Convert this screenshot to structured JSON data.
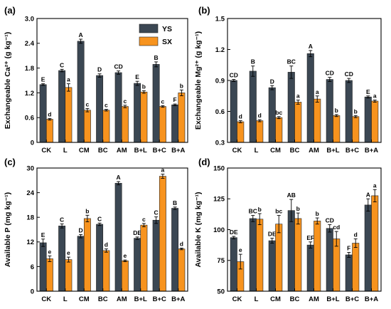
{
  "colors": {
    "YS": "#3b4753",
    "SX": "#f7931e"
  },
  "legend": [
    "YS",
    "SX"
  ],
  "chart_data": [
    {
      "type": "bar",
      "panel_label": "(a)",
      "ylabel": "Exchangeable Ca²⁺ (g kg⁻¹)",
      "ylim": [
        0,
        3.0
      ],
      "yticks": [
        "0",
        "0.6",
        "1.2",
        "1.8",
        "2.4",
        "3.0"
      ],
      "ytick_values": [
        0,
        0.6,
        1.2,
        1.8,
        2.4,
        3.0
      ],
      "categories": [
        "CK",
        "L",
        "CM",
        "BC",
        "AM",
        "B+L",
        "B+C",
        "B+A"
      ],
      "series": [
        {
          "name": "YS",
          "values": [
            1.4,
            1.74,
            2.45,
            1.62,
            1.69,
            1.43,
            1.89,
            0.91
          ],
          "errors": [
            0.02,
            0.03,
            0.05,
            0.04,
            0.04,
            0.05,
            0.06,
            0.02
          ],
          "letters": [
            "E",
            "C",
            "A",
            "D",
            "CD",
            "E",
            "B",
            "F"
          ]
        },
        {
          "name": "SX",
          "values": [
            0.56,
            1.33,
            0.78,
            0.78,
            0.87,
            1.22,
            0.87,
            1.2
          ],
          "errors": [
            0.02,
            0.09,
            0.04,
            0.02,
            0.03,
            0.03,
            0.02,
            0.07
          ],
          "letters": [
            "d",
            "a",
            "c",
            "c",
            "c",
            "b",
            "c",
            "b"
          ]
        }
      ],
      "legend_position": "top-right"
    },
    {
      "type": "bar",
      "panel_label": "(b)",
      "ylabel": "Exchangeable Mg²⁺ (g kg⁻¹)",
      "ylim": [
        0.3,
        1.5
      ],
      "yticks": [
        "0.3",
        "0.6",
        "0.9",
        "1.2",
        "1.5"
      ],
      "ytick_values": [
        0.3,
        0.6,
        0.9,
        1.2,
        1.5
      ],
      "categories": [
        "CK",
        "L",
        "CM",
        "BC",
        "AM",
        "B+L",
        "B+C",
        "B+A"
      ],
      "series": [
        {
          "name": "YS",
          "values": [
            0.9,
            0.99,
            0.83,
            0.98,
            1.16,
            0.91,
            0.9,
            0.74
          ],
          "errors": [
            0.01,
            0.05,
            0.02,
            0.06,
            0.03,
            0.02,
            0.02,
            0.01
          ],
          "letters": [
            "CD",
            "B",
            "D",
            "BC",
            "A",
            "CD",
            "CD",
            "E"
          ]
        },
        {
          "name": "SX",
          "values": [
            0.5,
            0.51,
            0.54,
            0.69,
            0.72,
            0.56,
            0.55,
            0.7
          ],
          "errors": [
            0.01,
            0.01,
            0.01,
            0.02,
            0.03,
            0.01,
            0.01,
            0.01
          ],
          "letters": [
            "d",
            "d",
            "bc",
            "a",
            "a",
            "b",
            "b",
            "a"
          ]
        }
      ]
    },
    {
      "type": "bar",
      "panel_label": "(c)",
      "ylabel": "Available P (mg kg⁻¹)",
      "ylim": [
        0,
        30
      ],
      "yticks": [
        "0",
        "6",
        "12",
        "18",
        "24",
        "30"
      ],
      "ytick_values": [
        0,
        6,
        12,
        18,
        24,
        30
      ],
      "categories": [
        "CK",
        "L",
        "CM",
        "BC",
        "AM",
        "B+L",
        "B+C",
        "B+A"
      ],
      "series": [
        {
          "name": "YS",
          "values": [
            11.8,
            15.9,
            13.4,
            16.3,
            26.3,
            12.9,
            17.3,
            20.2
          ],
          "errors": [
            0.9,
            0.5,
            0.4,
            0.3,
            0.4,
            0.3,
            0.8,
            0.3
          ],
          "letters": [
            "E",
            "C",
            "D",
            "C",
            "A",
            "DE",
            "C",
            "B"
          ]
        },
        {
          "name": "SX",
          "values": [
            7.9,
            7.7,
            17.7,
            9.9,
            7.4,
            16.1,
            28.0,
            10.3
          ],
          "errors": [
            0.7,
            0.6,
            0.8,
            0.4,
            0.2,
            0.4,
            0.5,
            0.2
          ],
          "letters": [
            "e",
            "e",
            "b",
            "d",
            "e",
            "c",
            "a",
            "d"
          ]
        }
      ]
    },
    {
      "type": "bar",
      "panel_label": "(d)",
      "ylabel": "Available K (mg kg⁻¹)",
      "ylim": [
        50,
        150
      ],
      "yticks": [
        "50",
        "75",
        "100",
        "125",
        "150"
      ],
      "ytick_values": [
        50,
        75,
        100,
        125,
        150
      ],
      "categories": [
        "CK",
        "L",
        "CM",
        "BC",
        "AM",
        "B+L",
        "B+C",
        "B+A"
      ],
      "series": [
        {
          "name": "YS",
          "values": [
            93.5,
            109.0,
            91.0,
            115.5,
            87.5,
            101.0,
            79.5,
            120.0
          ],
          "errors": [
            1.0,
            2.5,
            2.0,
            9.0,
            2.5,
            3.0,
            2.0,
            5.0
          ],
          "letters": [
            "DE",
            "BC",
            "DE",
            "AB",
            "EF",
            "CD",
            "F",
            "A"
          ]
        },
        {
          "name": "SX",
          "values": [
            74.0,
            108.5,
            104.5,
            109.0,
            107.0,
            92.5,
            89.0,
            127.5
          ],
          "errors": [
            6.0,
            4.5,
            7.0,
            4.5,
            2.5,
            6.0,
            3.5,
            5.0
          ],
          "letters": [
            "e",
            "b",
            "bc",
            "b",
            "b",
            "cd",
            "d",
            "a"
          ]
        }
      ]
    }
  ]
}
